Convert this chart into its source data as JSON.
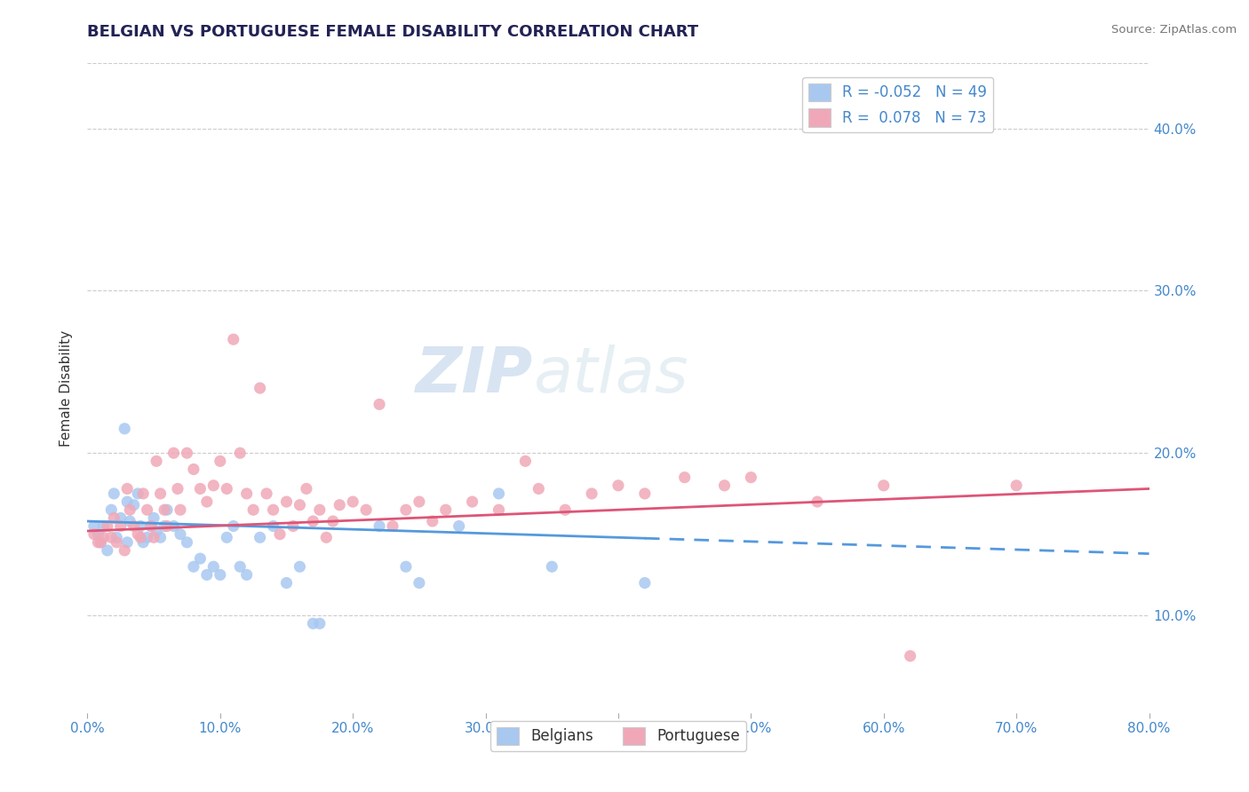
{
  "title": "BELGIAN VS PORTUGUESE FEMALE DISABILITY CORRELATION CHART",
  "source": "Source: ZipAtlas.com",
  "ylabel": "Female Disability",
  "r_belgian": -0.052,
  "n_belgian": 49,
  "r_portuguese": 0.078,
  "n_portuguese": 73,
  "xlim": [
    0.0,
    0.8
  ],
  "ylim": [
    0.04,
    0.44
  ],
  "yticks": [
    0.1,
    0.2,
    0.3,
    0.4
  ],
  "color_belgian": "#a8c8f0",
  "color_portuguese": "#f0a8b8",
  "line_color_belgian": "#5599dd",
  "line_color_portuguese": "#dd5577",
  "watermark_zip": "ZIP",
  "watermark_atlas": "atlas",
  "belgian_points": [
    [
      0.005,
      0.155
    ],
    [
      0.008,
      0.15
    ],
    [
      0.01,
      0.145
    ],
    [
      0.012,
      0.155
    ],
    [
      0.015,
      0.14
    ],
    [
      0.018,
      0.165
    ],
    [
      0.02,
      0.175
    ],
    [
      0.022,
      0.148
    ],
    [
      0.025,
      0.16
    ],
    [
      0.028,
      0.215
    ],
    [
      0.03,
      0.17
    ],
    [
      0.03,
      0.145
    ],
    [
      0.032,
      0.158
    ],
    [
      0.035,
      0.168
    ],
    [
      0.038,
      0.175
    ],
    [
      0.04,
      0.155
    ],
    [
      0.042,
      0.145
    ],
    [
      0.045,
      0.148
    ],
    [
      0.048,
      0.155
    ],
    [
      0.05,
      0.16
    ],
    [
      0.052,
      0.152
    ],
    [
      0.055,
      0.148
    ],
    [
      0.058,
      0.155
    ],
    [
      0.06,
      0.165
    ],
    [
      0.065,
      0.155
    ],
    [
      0.07,
      0.15
    ],
    [
      0.075,
      0.145
    ],
    [
      0.08,
      0.13
    ],
    [
      0.085,
      0.135
    ],
    [
      0.09,
      0.125
    ],
    [
      0.095,
      0.13
    ],
    [
      0.1,
      0.125
    ],
    [
      0.105,
      0.148
    ],
    [
      0.11,
      0.155
    ],
    [
      0.115,
      0.13
    ],
    [
      0.12,
      0.125
    ],
    [
      0.13,
      0.148
    ],
    [
      0.14,
      0.155
    ],
    [
      0.15,
      0.12
    ],
    [
      0.16,
      0.13
    ],
    [
      0.17,
      0.095
    ],
    [
      0.175,
      0.095
    ],
    [
      0.22,
      0.155
    ],
    [
      0.24,
      0.13
    ],
    [
      0.25,
      0.12
    ],
    [
      0.28,
      0.155
    ],
    [
      0.31,
      0.175
    ],
    [
      0.35,
      0.13
    ],
    [
      0.42,
      0.12
    ]
  ],
  "portuguese_points": [
    [
      0.005,
      0.15
    ],
    [
      0.008,
      0.145
    ],
    [
      0.01,
      0.145
    ],
    [
      0.012,
      0.148
    ],
    [
      0.015,
      0.155
    ],
    [
      0.018,
      0.148
    ],
    [
      0.02,
      0.16
    ],
    [
      0.022,
      0.145
    ],
    [
      0.025,
      0.155
    ],
    [
      0.028,
      0.14
    ],
    [
      0.03,
      0.178
    ],
    [
      0.032,
      0.165
    ],
    [
      0.035,
      0.155
    ],
    [
      0.038,
      0.15
    ],
    [
      0.04,
      0.148
    ],
    [
      0.042,
      0.175
    ],
    [
      0.045,
      0.165
    ],
    [
      0.048,
      0.155
    ],
    [
      0.05,
      0.148
    ],
    [
      0.052,
      0.195
    ],
    [
      0.055,
      0.175
    ],
    [
      0.058,
      0.165
    ],
    [
      0.06,
      0.155
    ],
    [
      0.065,
      0.2
    ],
    [
      0.068,
      0.178
    ],
    [
      0.07,
      0.165
    ],
    [
      0.075,
      0.2
    ],
    [
      0.08,
      0.19
    ],
    [
      0.085,
      0.178
    ],
    [
      0.09,
      0.17
    ],
    [
      0.095,
      0.18
    ],
    [
      0.1,
      0.195
    ],
    [
      0.105,
      0.178
    ],
    [
      0.11,
      0.27
    ],
    [
      0.115,
      0.2
    ],
    [
      0.12,
      0.175
    ],
    [
      0.125,
      0.165
    ],
    [
      0.13,
      0.24
    ],
    [
      0.135,
      0.175
    ],
    [
      0.14,
      0.165
    ],
    [
      0.145,
      0.15
    ],
    [
      0.15,
      0.17
    ],
    [
      0.155,
      0.155
    ],
    [
      0.16,
      0.168
    ],
    [
      0.165,
      0.178
    ],
    [
      0.17,
      0.158
    ],
    [
      0.175,
      0.165
    ],
    [
      0.18,
      0.148
    ],
    [
      0.185,
      0.158
    ],
    [
      0.19,
      0.168
    ],
    [
      0.2,
      0.17
    ],
    [
      0.21,
      0.165
    ],
    [
      0.22,
      0.23
    ],
    [
      0.23,
      0.155
    ],
    [
      0.24,
      0.165
    ],
    [
      0.25,
      0.17
    ],
    [
      0.26,
      0.158
    ],
    [
      0.27,
      0.165
    ],
    [
      0.29,
      0.17
    ],
    [
      0.31,
      0.165
    ],
    [
      0.33,
      0.195
    ],
    [
      0.34,
      0.178
    ],
    [
      0.36,
      0.165
    ],
    [
      0.38,
      0.175
    ],
    [
      0.4,
      0.18
    ],
    [
      0.42,
      0.175
    ],
    [
      0.45,
      0.185
    ],
    [
      0.48,
      0.18
    ],
    [
      0.5,
      0.185
    ],
    [
      0.55,
      0.17
    ],
    [
      0.6,
      0.18
    ],
    [
      0.62,
      0.075
    ],
    [
      0.7,
      0.18
    ]
  ],
  "line_belgian_y_start": 0.158,
  "line_belgian_y_end": 0.138,
  "line_belgian_x_solid_end": 0.42,
  "line_portuguese_y_start": 0.152,
  "line_portuguese_y_end": 0.178
}
